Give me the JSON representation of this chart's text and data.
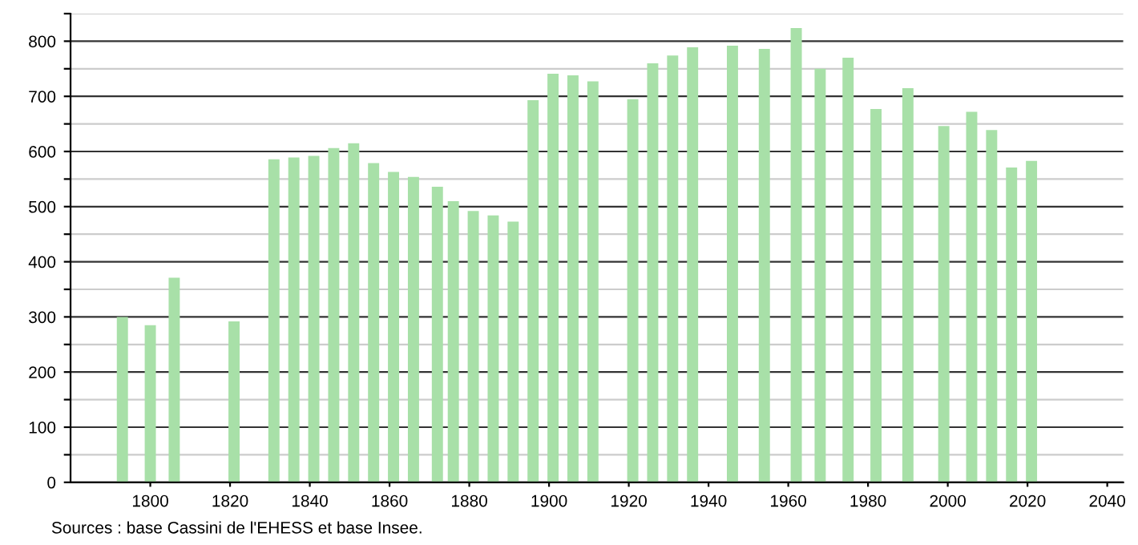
{
  "chart_data": {
    "type": "bar",
    "x": [
      1793,
      1800,
      1806,
      1821,
      1831,
      1836,
      1841,
      1846,
      1851,
      1856,
      1861,
      1866,
      1872,
      1876,
      1881,
      1886,
      1891,
      1896,
      1901,
      1906,
      1911,
      1921,
      1926,
      1931,
      1936,
      1946,
      1954,
      1962,
      1968,
      1975,
      1982,
      1990,
      1999,
      2006,
      2011,
      2016,
      2021
    ],
    "values": [
      300,
      285,
      371,
      292,
      586,
      589,
      592,
      606,
      615,
      579,
      563,
      554,
      536,
      510,
      492,
      484,
      473,
      693,
      741,
      738,
      727,
      695,
      760,
      774,
      789,
      792,
      786,
      824,
      750,
      770,
      677,
      715,
      646,
      672,
      639,
      571,
      583
    ],
    "color": "#a8e0a8",
    "xlim": [
      1780,
      2044
    ],
    "xticks": [
      1800,
      1820,
      1840,
      1860,
      1880,
      1900,
      1920,
      1940,
      1960,
      1980,
      2000,
      2020,
      2040
    ],
    "ylim": [
      0,
      850
    ],
    "yticks": [
      0,
      {
        "value": 50,
        "label": null
      },
      100,
      {
        "value": 150,
        "label": null
      },
      200,
      {
        "value": 250,
        "label": null
      },
      300,
      {
        "value": 350,
        "label": null
      },
      400,
      {
        "value": 450,
        "label": null
      },
      500,
      {
        "value": 550,
        "label": null
      },
      600,
      {
        "value": 650,
        "label": null
      },
      700,
      {
        "value": 750,
        "label": null
      },
      800,
      {
        "value": 850,
        "label": null
      }
    ],
    "grid": "y",
    "annotations": [
      "Sources : base Cassini de l'EHESS et base Insee."
    ]
  }
}
